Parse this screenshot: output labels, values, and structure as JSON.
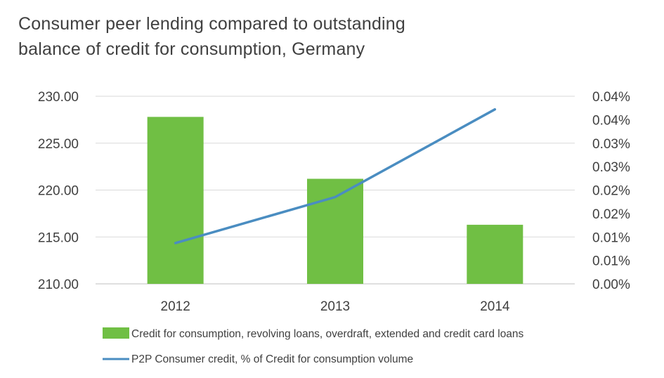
{
  "chart_data": {
    "type": "bar",
    "title": "Consumer peer lending compared to outstanding balance of credit for consumption, Germany",
    "title_lines": [
      "Consumer peer lending compared to outstanding",
      "balance of credit for consumption, Germany"
    ],
    "categories": [
      "2012",
      "2013",
      "2014"
    ],
    "series": [
      {
        "name": "Credit for consumption, revolving loans, overdraft, extended and credit card loans",
        "type": "bar",
        "axis": "left",
        "color": "#70BF44",
        "values": [
          227.8,
          221.2,
          216.3
        ]
      },
      {
        "name": "P2P Consumer credit, % of Credit for consumption volume",
        "type": "line",
        "axis": "right",
        "color": "#4A8DC1",
        "values": [
          0.0087,
          0.0185,
          0.0372
        ]
      }
    ],
    "y_left": {
      "lim": [
        210,
        230
      ],
      "ticks": [
        210,
        215,
        220,
        225,
        230
      ],
      "tick_labels": [
        "210.00",
        "215.00",
        "220.00",
        "225.00",
        "230.00"
      ]
    },
    "y_right": {
      "lim": [
        0,
        0.04
      ],
      "ticks": [
        0,
        0.005,
        0.01,
        0.015,
        0.02,
        0.025,
        0.03,
        0.035,
        0.04
      ],
      "tick_labels": [
        "0.00%",
        "0.01%",
        "0.01%",
        "0.02%",
        "0.02%",
        "0.03%",
        "0.03%",
        "0.04%",
        "0.04%"
      ]
    },
    "grid": true,
    "legend_position": "bottom",
    "xlabel": "",
    "ylabel": ""
  }
}
